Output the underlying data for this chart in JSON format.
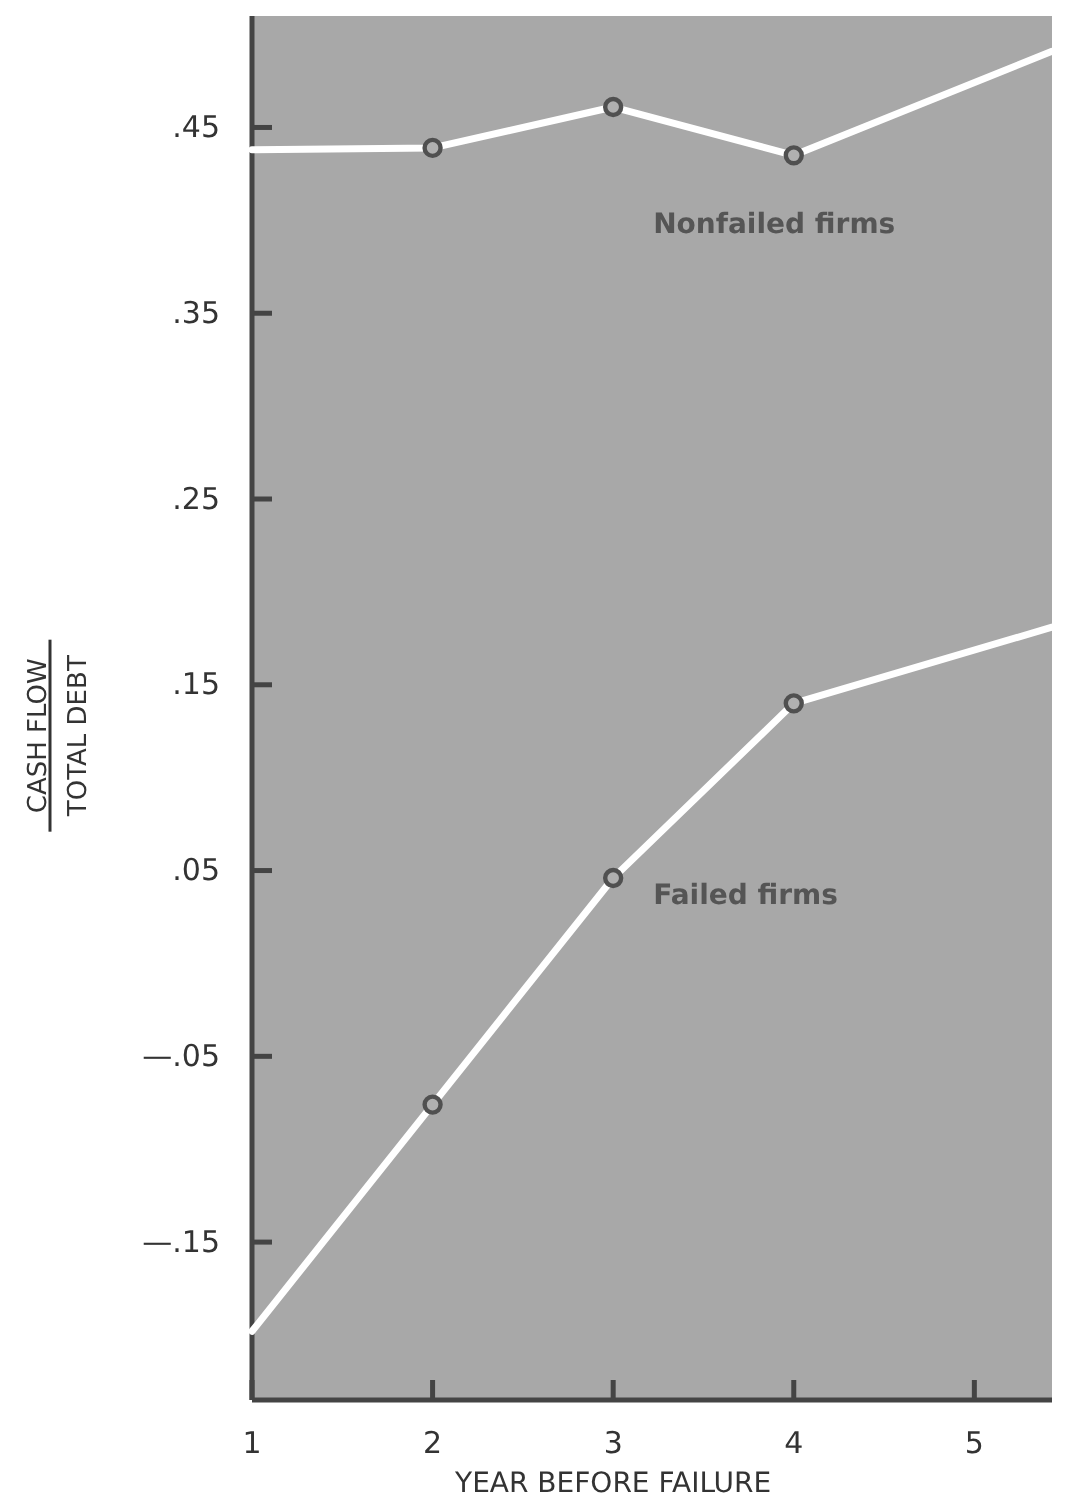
{
  "chart_data": {
    "type": "line",
    "xlabel": "YEAR BEFORE FAILURE",
    "ylabel": "CASH FLOW\nTOTAL DEBT",
    "xlim": [
      1,
      5.43
    ],
    "xticks": [
      1,
      2,
      3,
      4,
      5
    ],
    "ylim": [
      -0.235,
      0.51
    ],
    "yticks": [
      {
        "value": 0.45,
        "label": ".45"
      },
      {
        "value": 0.35,
        "label": ".35"
      },
      {
        "value": 0.25,
        "label": ".25"
      },
      {
        "value": 0.15,
        "label": ".15"
      },
      {
        "value": 0.05,
        "label": ".05"
      },
      {
        "value": -0.05,
        "label": "—.05"
      },
      {
        "value": -0.15,
        "label": "—.15"
      }
    ],
    "grid": false,
    "series": [
      {
        "name": "Nonfailed firms",
        "color": "#ffffff",
        "marker": "none",
        "x": [
          1,
          2,
          3,
          4,
          5.43
        ],
        "values": [
          0.438,
          0.439,
          0.461,
          0.435,
          0.491
        ]
      },
      {
        "name": "Failed firms",
        "color": "#ffffff",
        "marker": "none",
        "x": [
          1,
          2,
          3,
          4,
          5.43
        ],
        "values": [
          -0.198,
          -0.076,
          0.046,
          0.14,
          0.181
        ]
      },
      {
        "type": "scatter",
        "color": "#505050",
        "marker": "circle",
        "x": [
          2,
          3,
          4
        ],
        "values": [
          0.439,
          0.461,
          0.435
        ]
      },
      {
        "type": "scatter",
        "color": "#505050",
        "marker": "circle",
        "x": [
          2,
          3,
          4
        ],
        "values": [
          -0.076,
          0.046,
          0.14
        ]
      }
    ]
  }
}
